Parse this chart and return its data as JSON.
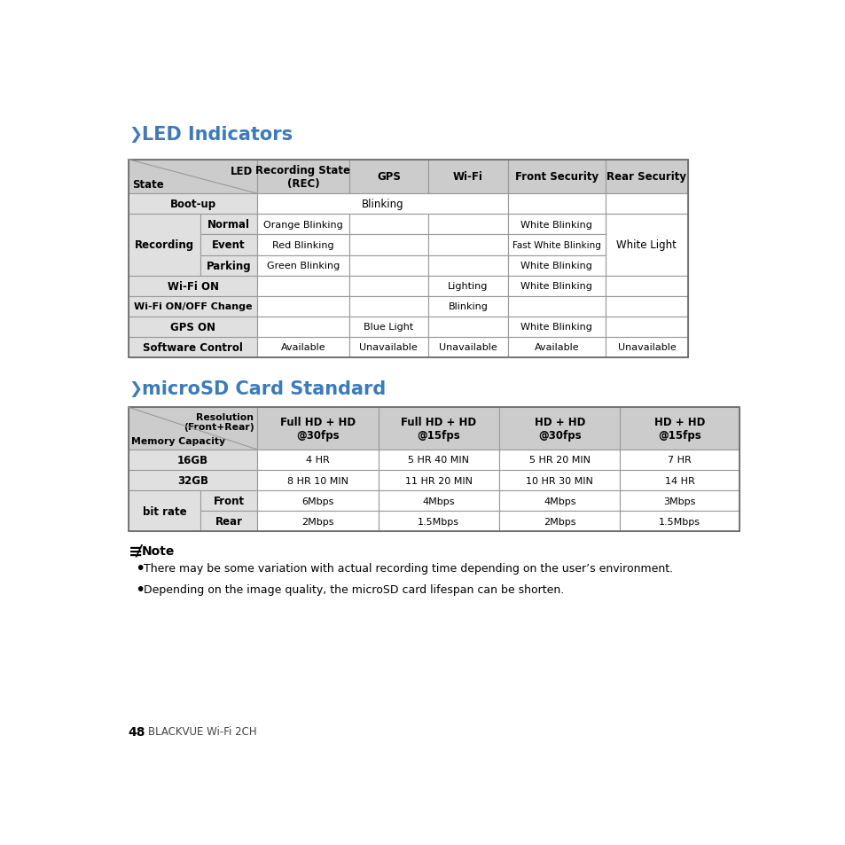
{
  "bg_color": "#ffffff",
  "title1": "LED Indicators",
  "title2": "microSD Card Standard",
  "title_color": "#3a7abf",
  "chevron_color": "#3a7abf",
  "page_number": "48",
  "page_label": "BLACKVUE Wi-Fi 2CH",
  "header_bg": "#cccccc",
  "subheader_bg": "#e0e0e0",
  "data_bg": "#ffffff",
  "border_color": "#999999",
  "note_text1": "There may be some variation with actual recording time depending on the user’s environment.",
  "note_text2": "Depending on the image quality, the microSD card lifespan can be shorten."
}
